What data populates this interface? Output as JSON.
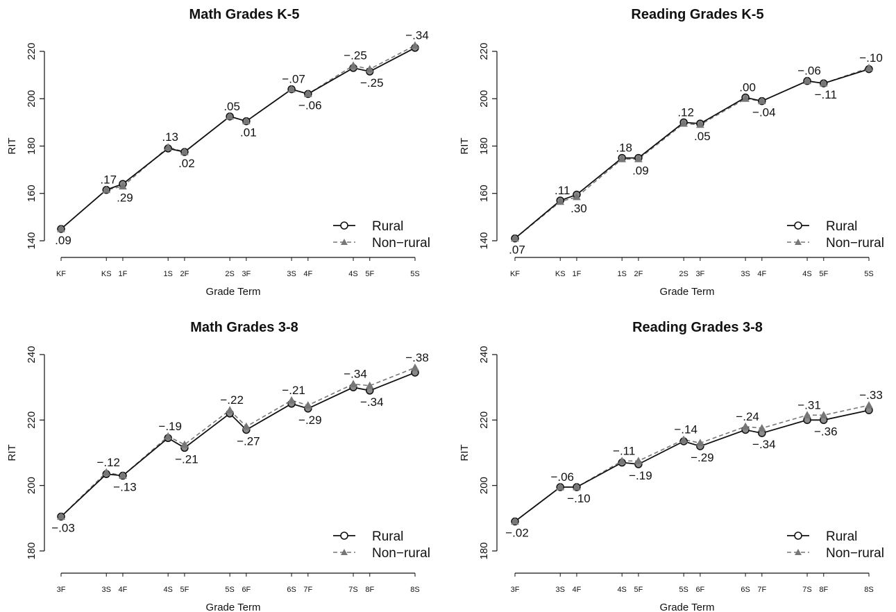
{
  "chart_data": [
    {
      "type": "line",
      "title": "Math Grades K-5",
      "xlabel": "Grade Term",
      "ylabel": "RIT",
      "ylim": [
        140,
        220
      ],
      "yticks": [
        140,
        160,
        180,
        200,
        220
      ],
      "categories": [
        "KF",
        "KS",
        "1F",
        "1S",
        "2F",
        "2S",
        "3F",
        "3S",
        "4F",
        "4S",
        "5F",
        "5S"
      ],
      "x": [
        0,
        1.1,
        1.5,
        2.6,
        3.0,
        4.1,
        4.5,
        5.6,
        6.0,
        7.1,
        7.5,
        8.6
      ],
      "series": [
        {
          "name": "Rural",
          "values": [
            145,
            161.5,
            164,
            179,
            177.5,
            192.5,
            190.5,
            204,
            202,
            213,
            211.5,
            221.5
          ]
        },
        {
          "name": "Non-rural",
          "values": [
            145,
            161.5,
            163,
            179.5,
            177.5,
            192.5,
            190.5,
            204,
            202,
            214,
            212.5,
            222.5
          ]
        }
      ],
      "annotations": [
        ".09",
        ".17",
        ".29",
        ".13",
        ".02",
        ".05",
        ".01",
        "-.07",
        "-.06",
        "-.25",
        "-.25",
        "-.34"
      ],
      "legend": "bottom-right",
      "grid": false
    },
    {
      "type": "line",
      "title": "Reading Grades K-5",
      "xlabel": "Grade Term",
      "ylabel": "RIT",
      "ylim": [
        140,
        220
      ],
      "yticks": [
        140,
        160,
        180,
        200,
        220
      ],
      "categories": [
        "KF",
        "KS",
        "1F",
        "1S",
        "2F",
        "2S",
        "3F",
        "3S",
        "4F",
        "4S",
        "5F",
        "5S"
      ],
      "x": [
        0,
        1.1,
        1.5,
        2.6,
        3.0,
        4.1,
        4.5,
        5.6,
        6.0,
        7.1,
        7.5,
        8.6
      ],
      "series": [
        {
          "name": "Rural",
          "values": [
            141,
            157,
            159.5,
            175,
            175,
            190,
            189.5,
            200.5,
            199,
            207.5,
            206.5,
            212.5
          ]
        },
        {
          "name": "Non-rural",
          "values": [
            141,
            156.5,
            158.5,
            174.5,
            174.5,
            189.5,
            189,
            200,
            199,
            207.5,
            206.5,
            213
          ]
        }
      ],
      "annotations": [
        ".07",
        ".11",
        ".30",
        ".18",
        ".09",
        ".12",
        ".05",
        ".00",
        "-.04",
        "-.06",
        "-.11",
        "-.10"
      ],
      "legend": "bottom-right",
      "grid": false
    },
    {
      "type": "line",
      "title": "Math Grades 3-8",
      "xlabel": "Grade Term",
      "ylabel": "RIT",
      "ylim": [
        180,
        240
      ],
      "yticks": [
        180,
        200,
        220,
        240
      ],
      "categories": [
        "3F",
        "3S",
        "4F",
        "4S",
        "5F",
        "5S",
        "6F",
        "6S",
        "7F",
        "7S",
        "8F",
        "8S"
      ],
      "x": [
        0,
        1.1,
        1.5,
        2.6,
        3.0,
        4.1,
        4.5,
        5.6,
        6.0,
        7.1,
        7.5,
        8.6
      ],
      "series": [
        {
          "name": "Rural",
          "values": [
            190.5,
            203.5,
            203,
            214.5,
            211.5,
            222,
            217,
            225,
            223.5,
            230,
            229,
            234.5
          ]
        },
        {
          "name": "Non-rural",
          "values": [
            190.5,
            204,
            203,
            215,
            212.5,
            223,
            218,
            226,
            224.5,
            231,
            230.5,
            236
          ]
        }
      ],
      "annotations": [
        "-.03",
        "-.12",
        "-.13",
        "-.19",
        "-.21",
        "-.22",
        "-.27",
        "-.21",
        "-.29",
        "-.34",
        "-.34",
        "-.38"
      ],
      "legend": "bottom-right",
      "grid": false
    },
    {
      "type": "line",
      "title": "Reading Grades 3-8",
      "xlabel": "Grade Term",
      "ylabel": "RIT",
      "ylim": [
        180,
        240
      ],
      "yticks": [
        180,
        200,
        220,
        240
      ],
      "categories": [
        "3F",
        "3S",
        "4F",
        "4S",
        "5F",
        "5S",
        "6F",
        "6S",
        "7F",
        "7S",
        "8F",
        "8S"
      ],
      "x": [
        0,
        1.1,
        1.5,
        2.6,
        3.0,
        4.1,
        4.5,
        5.6,
        6.0,
        7.1,
        7.5,
        8.6
      ],
      "series": [
        {
          "name": "Rural",
          "values": [
            189,
            199.5,
            199.5,
            207,
            206.5,
            213.5,
            212,
            217,
            216,
            220,
            220,
            223
          ]
        },
        {
          "name": "Non-rural",
          "values": [
            189,
            199.5,
            199.5,
            207.5,
            207.5,
            214,
            213,
            218,
            217.5,
            221.5,
            221.5,
            224.5
          ]
        }
      ],
      "annotations": [
        "-.02",
        "-.06",
        "-.10",
        "-.11",
        "-.19",
        "-.14",
        "-.29",
        "-.24",
        "-.34",
        "-.31",
        "-.36",
        "-.33"
      ],
      "legend": "bottom-right",
      "grid": false
    }
  ],
  "legend_labels": [
    "Rural",
    "Non-rural"
  ],
  "colors": {
    "rural": "#111111",
    "nonrural": "#777777",
    "marker_fill": "#8a8a8a"
  }
}
